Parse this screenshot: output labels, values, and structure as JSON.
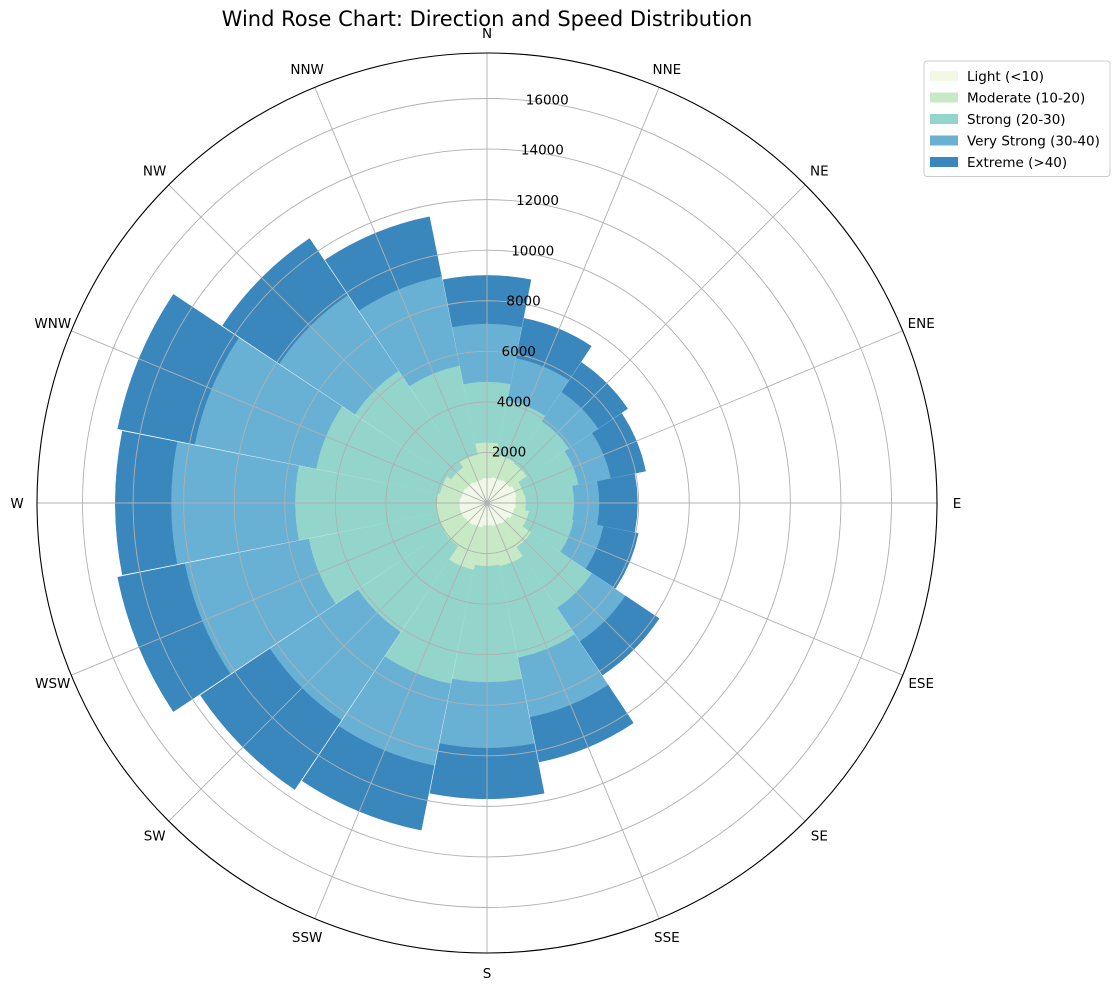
{
  "chart_data": {
    "type": "bar",
    "subtype": "polar-stacked (wind rose)",
    "title": "Wind Rose Chart: Direction and Speed Distribution",
    "categories": [
      "N",
      "NNE",
      "NE",
      "ENE",
      "E",
      "ESE",
      "SE",
      "SSE",
      "S",
      "SSW",
      "SW",
      "WSW",
      "W",
      "WNW",
      "NW",
      "NNW"
    ],
    "radial_ticks": [
      "2000",
      "4000",
      "6000",
      "8000",
      "10000",
      "12000",
      "14000",
      "16000"
    ],
    "rmax": 17800,
    "grid": true,
    "legend_position": "top-right",
    "series": [
      {
        "name": "Light (<10)",
        "color": "#f0f9e8",
        "values": [
          1000,
          1050,
          1100,
          1200,
          1150,
          1100,
          1000,
          950,
          900,
          1000,
          1050,
          1100,
          1100,
          1050,
          1000,
          950
        ]
      },
      {
        "name": "Moderate (10-20)",
        "color": "#c8e9c5",
        "values": [
          1400,
          900,
          800,
          300,
          400,
          600,
          1100,
          1600,
          1600,
          1700,
          1000,
          900,
          900,
          850,
          700,
          1000
        ]
      },
      {
        "name": "Strong (20-30)",
        "color": "#94d5cb",
        "values": [
          2400,
          2200,
          2000,
          2200,
          1900,
          1800,
          2900,
          3700,
          4600,
          4600,
          4100,
          5200,
          5600,
          5000,
          4600,
          3600
        ]
      },
      {
        "name": "Very Strong (30-40)",
        "color": "#68b1d4",
        "values": [
          2300,
          1700,
          1400,
          1300,
          1000,
          1200,
          1600,
          2400,
          2600,
          3300,
          4200,
          5000,
          4900,
          4900,
          3600,
          3600
        ]
      },
      {
        "name": "Extreme (>40)",
        "color": "#3987bd",
        "values": [
          1900,
          1600,
          1400,
          1400,
          1500,
          1400,
          1600,
          1800,
          2000,
          2600,
          3300,
          2700,
          2200,
          3100,
          2700,
          2400
        ]
      }
    ]
  }
}
